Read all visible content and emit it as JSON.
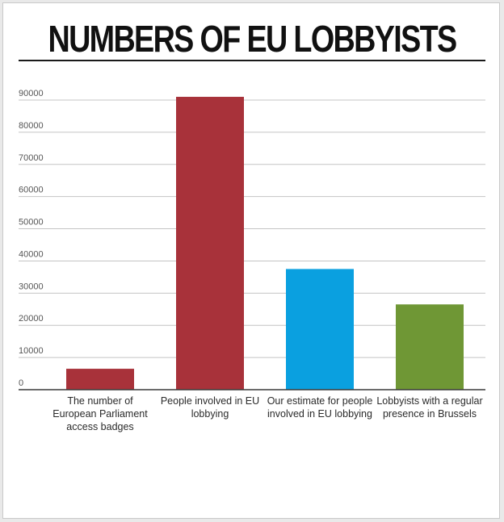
{
  "chart_data": {
    "type": "bar",
    "title": "NUMBERS OF EU LOBBYISTS",
    "categories": [
      "The number of European Parliament access badges",
      "People involved in EU lobbying",
      "Our estimate for people involved in EU lobbying",
      "Lobbyists with a regular presence in Brussels"
    ],
    "values": [
      6500,
      91000,
      37500,
      26500
    ],
    "colors": [
      "#a8323a",
      "#a8323a",
      "#0aa0e0",
      "#6f9735"
    ],
    "ylim": [
      0,
      90000
    ],
    "yticks": [
      0,
      10000,
      20000,
      30000,
      40000,
      50000,
      60000,
      70000,
      80000,
      90000
    ],
    "grid": true,
    "xlabel": "",
    "ylabel": ""
  }
}
